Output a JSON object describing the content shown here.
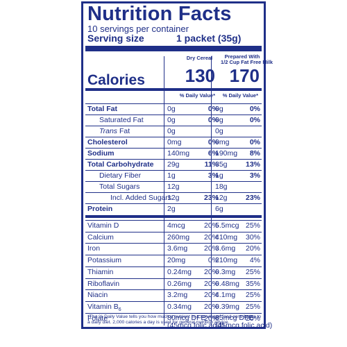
{
  "header": {
    "title": "Nutrition Facts",
    "servings": "10 servings per container",
    "serving_size_label": "Serving size",
    "serving_size_value": "1 packet (35g)"
  },
  "columns": {
    "col1_head": "Dry Cereal",
    "col2_head_line1": "Prepared With",
    "col2_head_line2": "1/2 Cup Fat Free Milk",
    "dv_head": "% Daily Value*"
  },
  "calories": {
    "label": "Calories",
    "dry": "130",
    "prepared": "170"
  },
  "nutrients": [
    {
      "name": "Total Fat",
      "dry_amt": "0g",
      "dry_pct": "0%",
      "prep_amt": "0g",
      "prep_pct": "0%"
    },
    {
      "name": "Saturated Fat",
      "dry_amt": "0g",
      "dry_pct": "0%",
      "prep_amt": "0g",
      "prep_pct": "0%"
    },
    {
      "name": "Trans",
      "name_suffix": " Fat",
      "dry_amt": "0g",
      "dry_pct": "",
      "prep_amt": "0g",
      "prep_pct": ""
    },
    {
      "name": "Cholesterol",
      "dry_amt": "0mg",
      "dry_pct": "0%",
      "prep_amt": "0mg",
      "prep_pct": "0%"
    },
    {
      "name": "Sodium",
      "dry_amt": "140mg",
      "dry_pct": "6%",
      "prep_amt": "190mg",
      "prep_pct": "8%"
    },
    {
      "name": "Total Carbohydrate",
      "dry_amt": "29g",
      "dry_pct": "11%",
      "prep_amt": "35g",
      "prep_pct": "13%"
    },
    {
      "name": "Dietary Fiber",
      "dry_amt": "1g",
      "dry_pct": "3%",
      "prep_amt": "1g",
      "prep_pct": "3%"
    },
    {
      "name": "Total Sugars",
      "dry_amt": "12g",
      "dry_pct": "",
      "prep_amt": "18g",
      "prep_pct": ""
    },
    {
      "name": "Incl. Added Sugars",
      "dry_amt": "12g",
      "dry_pct": "23%",
      "prep_amt": "12g",
      "prep_pct": "23%"
    },
    {
      "name": "Protein",
      "dry_amt": "2g",
      "dry_pct": "",
      "prep_amt": "6g",
      "prep_pct": ""
    }
  ],
  "vitamins": [
    {
      "name": "Vitamin D",
      "dry_amt": "4mcg",
      "dry_pct": "20%",
      "prep_amt": "5.5mcg",
      "prep_pct": "25%"
    },
    {
      "name": "Calcium",
      "dry_amt": "260mg",
      "dry_pct": "20%",
      "prep_amt": "410mg",
      "prep_pct": "30%"
    },
    {
      "name": "Iron",
      "dry_amt": "3.6mg",
      "dry_pct": "20%",
      "prep_amt": "3.6mg",
      "prep_pct": "20%"
    },
    {
      "name": "Potassium",
      "dry_amt": "20mg",
      "dry_pct": "0%",
      "prep_amt": "210mg",
      "prep_pct": "4%"
    },
    {
      "name": "Thiamin",
      "dry_amt": "0.24mg",
      "dry_pct": "20%",
      "prep_amt": "0.3mg",
      "prep_pct": "25%"
    },
    {
      "name": "Riboflavin",
      "dry_amt": "0.26mg",
      "dry_pct": "20%",
      "prep_amt": "0.48mg",
      "prep_pct": "35%"
    },
    {
      "name": "Niacin",
      "dry_amt": "3.2mg",
      "dry_pct": "20%",
      "prep_amt": "4.1mg",
      "prep_pct": "25%"
    },
    {
      "name": "Vitamin B",
      "name_sub": "6",
      "dry_amt": "0.34mg",
      "dry_pct": "20%",
      "prep_amt": "0.39mg",
      "prep_pct": "25%"
    },
    {
      "name": "Folate",
      "dry_amt": "80mcg DFE",
      "dry_amt2": "(45mcg folic acid)",
      "dry_pct": "20%",
      "prep_amt": "85mcg DFE",
      "prep_amt2": "(45mcg folic acid)",
      "prep_pct": "20%"
    }
  ],
  "footnote": "*The % Daily Value tells you how much a nutrient in a serving of food contributes to a daily diet. 2,000 calories a day is used for general nutrition advice."
}
